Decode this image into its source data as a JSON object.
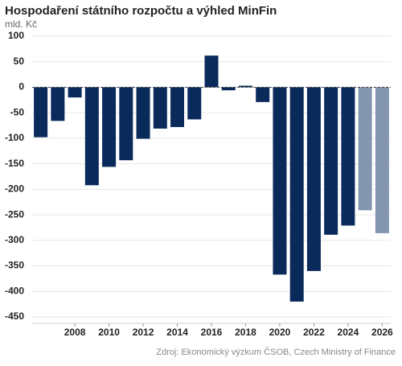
{
  "chart_data": {
    "type": "bar",
    "title": "Hospodaření státního rozpočtu a výhled MinFin",
    "subtitle": "mld. Kč",
    "source": "Zdroj: Ekonomický výzkum ČSOB, Czech Ministry of Finance",
    "categories": [
      null,
      null,
      2008,
      null,
      2010,
      null,
      2012,
      null,
      2014,
      null,
      2016,
      null,
      2018,
      null,
      2020,
      null,
      2022,
      null,
      2024,
      null,
      2026
    ],
    "values": [
      -98,
      -66,
      -20,
      -192,
      -156,
      -143,
      -101,
      -81,
      -78,
      -63,
      62,
      -6,
      3,
      -29,
      -367,
      -420,
      -360,
      -289,
      -271,
      -241,
      -286
    ],
    "colors": [
      "#0a2a5c",
      "#0a2a5c",
      "#0a2a5c",
      "#0a2a5c",
      "#0a2a5c",
      "#0a2a5c",
      "#0a2a5c",
      "#0a2a5c",
      "#0a2a5c",
      "#0a2a5c",
      "#0a2a5c",
      "#0a2a5c",
      "#0a2a5c",
      "#0a2a5c",
      "#0a2a5c",
      "#0a2a5c",
      "#0a2a5c",
      "#0a2a5c",
      "#0a2a5c",
      "#8495b0",
      "#8495b0"
    ],
    "ylim": [
      -450,
      100
    ],
    "yticks": [
      -450,
      -400,
      -350,
      -300,
      -250,
      -200,
      -150,
      -100,
      -50,
      0,
      50,
      100
    ],
    "grid": true
  }
}
